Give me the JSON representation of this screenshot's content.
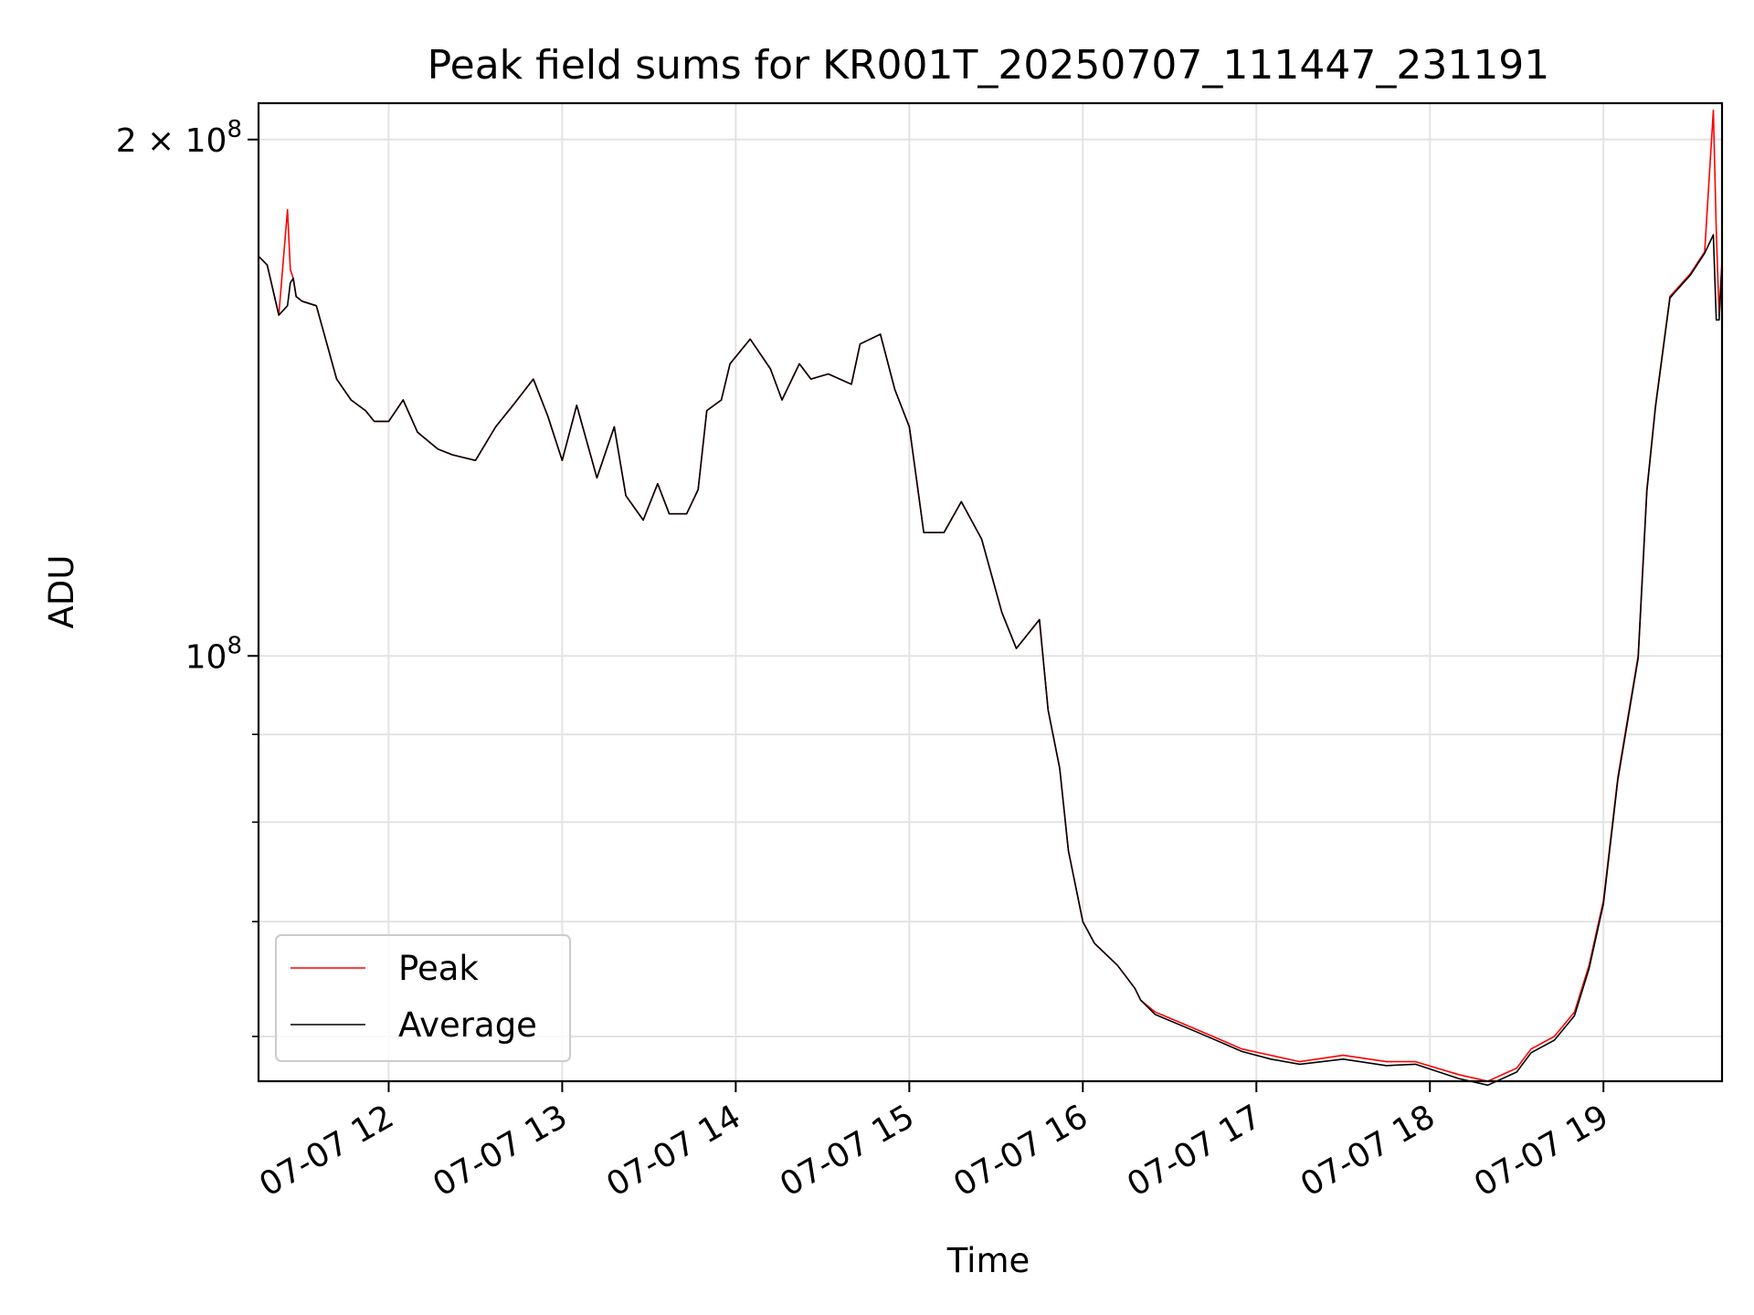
{
  "chart_data": {
    "type": "line",
    "title": "Peak field sums for KR001T_20250707_111447_231191",
    "xlabel": "Time",
    "ylabel": "ADU",
    "yscale": "log",
    "grid": true,
    "legend_position": "lower-left",
    "xlim": [
      "07-07 11:15",
      "07-07 19:41"
    ],
    "ylim": [
      56500000,
      210000000
    ],
    "x_ticks": [
      "07-07 12",
      "07-07 13",
      "07-07 14",
      "07-07 15",
      "07-07 16",
      "07-07 17",
      "07-07 18",
      "07-07 19"
    ],
    "x_tick_times": [
      "07-07 12:00",
      "07-07 13:00",
      "07-07 14:00",
      "07-07 15:00",
      "07-07 16:00",
      "07-07 17:00",
      "07-07 18:00",
      "07-07 19:00"
    ],
    "y_major_ticks": [
      {
        "value": 100000000,
        "mantissa": "",
        "exponent": "8"
      },
      {
        "value": 200000000,
        "mantissa": "2",
        "exponent": "8"
      }
    ],
    "y_minor_ticks": [
      60000000,
      70000000,
      80000000,
      90000000
    ],
    "series": [
      {
        "name": "Peak",
        "color": "#ff0000",
        "x": [
          "07-07 11:15",
          "07-07 11:18",
          "07-07 11:22",
          "07-07 11:25",
          "07-07 11:26",
          "07-07 11:27",
          "07-07 11:28",
          "07-07 11:30",
          "07-07 11:35",
          "07-07 11:42",
          "07-07 11:47",
          "07-07 11:52",
          "07-07 11:55",
          "07-07 12:00",
          "07-07 12:05",
          "07-07 12:10",
          "07-07 12:17",
          "07-07 12:22",
          "07-07 12:30",
          "07-07 12:37",
          "07-07 12:43",
          "07-07 12:50",
          "07-07 12:55",
          "07-07 13:00",
          "07-07 13:05",
          "07-07 13:12",
          "07-07 13:18",
          "07-07 13:22",
          "07-07 13:28",
          "07-07 13:33",
          "07-07 13:37",
          "07-07 13:43",
          "07-07 13:47",
          "07-07 13:50",
          "07-07 13:55",
          "07-07 13:58",
          "07-07 14:05",
          "07-07 14:12",
          "07-07 14:16",
          "07-07 14:22",
          "07-07 14:26",
          "07-07 14:32",
          "07-07 14:40",
          "07-07 14:43",
          "07-07 14:50",
          "07-07 14:55",
          "07-07 15:00",
          "07-07 15:05",
          "07-07 15:12",
          "07-07 15:18",
          "07-07 15:25",
          "07-07 15:32",
          "07-07 15:37",
          "07-07 15:45",
          "07-07 15:48",
          "07-07 15:52",
          "07-07 15:55",
          "07-07 16:00",
          "07-07 16:04",
          "07-07 16:08",
          "07-07 16:12",
          "07-07 16:15",
          "07-07 16:18",
          "07-07 16:20",
          "07-07 16:25",
          "07-07 16:35",
          "07-07 16:45",
          "07-07 16:55",
          "07-07 17:05",
          "07-07 17:15",
          "07-07 17:30",
          "07-07 17:45",
          "07-07 17:55",
          "07-07 18:10",
          "07-07 18:20",
          "07-07 18:30",
          "07-07 18:35",
          "07-07 18:43",
          "07-07 18:50",
          "07-07 18:55",
          "07-07 19:00",
          "07-07 19:05",
          "07-07 19:12",
          "07-07 19:15",
          "07-07 19:18",
          "07-07 19:23",
          "07-07 19:30",
          "07-07 19:35",
          "07-07 19:38",
          "07-07 19:39",
          "07-07 19:40",
          "07-07 19:41"
        ],
        "values": [
          171000000,
          169000000,
          158000000,
          182000000,
          168000000,
          166000000,
          162000000,
          161000000,
          160000000,
          145000000,
          141000000,
          139000000,
          137000000,
          137000000,
          141000000,
          135000000,
          132000000,
          131000000,
          130000000,
          136000000,
          140000000,
          145000000,
          138000000,
          130000000,
          140000000,
          127000000,
          136000000,
          124000000,
          120000000,
          126000000,
          121000000,
          121000000,
          125000000,
          139000000,
          141000000,
          148000000,
          153000000,
          147000000,
          141000000,
          148000000,
          145000000,
          146000000,
          144000000,
          152000000,
          154000000,
          143000000,
          136000000,
          118000000,
          118000000,
          123000000,
          117000000,
          106000000,
          101000000,
          105000000,
          93000000,
          86000000,
          77000000,
          70000000,
          68000000,
          67000000,
          66000000,
          65000000,
          64000000,
          63000000,
          62000000,
          61000000,
          60000000,
          59000000,
          58500000,
          58000000,
          58500000,
          58000000,
          58000000,
          57000000,
          56500000,
          57500000,
          59000000,
          60000000,
          62000000,
          66000000,
          72000000,
          85000000,
          100000000,
          125000000,
          140000000,
          162000000,
          167000000,
          172000000,
          208000000,
          177000000,
          158000000,
          170000000
        ]
      },
      {
        "name": "Average",
        "color": "#000000",
        "x": [
          "07-07 11:15",
          "07-07 11:18",
          "07-07 11:22",
          "07-07 11:25",
          "07-07 11:26",
          "07-07 11:27",
          "07-07 11:28",
          "07-07 11:30",
          "07-07 11:35",
          "07-07 11:42",
          "07-07 11:47",
          "07-07 11:52",
          "07-07 11:55",
          "07-07 12:00",
          "07-07 12:05",
          "07-07 12:10",
          "07-07 12:17",
          "07-07 12:22",
          "07-07 12:30",
          "07-07 12:37",
          "07-07 12:43",
          "07-07 12:50",
          "07-07 12:55",
          "07-07 13:00",
          "07-07 13:05",
          "07-07 13:12",
          "07-07 13:18",
          "07-07 13:22",
          "07-07 13:28",
          "07-07 13:33",
          "07-07 13:37",
          "07-07 13:43",
          "07-07 13:47",
          "07-07 13:50",
          "07-07 13:55",
          "07-07 13:58",
          "07-07 14:05",
          "07-07 14:12",
          "07-07 14:16",
          "07-07 14:22",
          "07-07 14:26",
          "07-07 14:32",
          "07-07 14:40",
          "07-07 14:43",
          "07-07 14:50",
          "07-07 14:55",
          "07-07 15:00",
          "07-07 15:05",
          "07-07 15:12",
          "07-07 15:18",
          "07-07 15:25",
          "07-07 15:32",
          "07-07 15:37",
          "07-07 15:45",
          "07-07 15:48",
          "07-07 15:52",
          "07-07 15:55",
          "07-07 16:00",
          "07-07 16:04",
          "07-07 16:08",
          "07-07 16:12",
          "07-07 16:15",
          "07-07 16:18",
          "07-07 16:20",
          "07-07 16:25",
          "07-07 16:35",
          "07-07 16:45",
          "07-07 16:55",
          "07-07 17:05",
          "07-07 17:15",
          "07-07 17:30",
          "07-07 17:45",
          "07-07 17:55",
          "07-07 18:10",
          "07-07 18:20",
          "07-07 18:30",
          "07-07 18:35",
          "07-07 18:43",
          "07-07 18:50",
          "07-07 18:55",
          "07-07 19:00",
          "07-07 19:05",
          "07-07 19:12",
          "07-07 19:15",
          "07-07 19:18",
          "07-07 19:23",
          "07-07 19:30",
          "07-07 19:35",
          "07-07 19:38",
          "07-07 19:39",
          "07-07 19:40",
          "07-07 19:41"
        ],
        "values": [
          171000000,
          169000000,
          158000000,
          160000000,
          165000000,
          166000000,
          162000000,
          161000000,
          160000000,
          145000000,
          141000000,
          139000000,
          137000000,
          137000000,
          141000000,
          135000000,
          132000000,
          131000000,
          130000000,
          136000000,
          140000000,
          145000000,
          138000000,
          130000000,
          140000000,
          127000000,
          136000000,
          124000000,
          120000000,
          126000000,
          121000000,
          121000000,
          125000000,
          139000000,
          141000000,
          148000000,
          153000000,
          147000000,
          141000000,
          148000000,
          145000000,
          146000000,
          144000000,
          152000000,
          154000000,
          143000000,
          136000000,
          118000000,
          118000000,
          123000000,
          117000000,
          106000000,
          101000000,
          105000000,
          93000000,
          86000000,
          77000000,
          70000000,
          68000000,
          67000000,
          66000000,
          65000000,
          64000000,
          63000000,
          61800000,
          60800000,
          59800000,
          58800000,
          58200000,
          57800000,
          58200000,
          57700000,
          57800000,
          56700000,
          56200000,
          57200000,
          58700000,
          59700000,
          61700000,
          65700000,
          71700000,
          84700000,
          99700000,
          124700000,
          139700000,
          161700000,
          166700000,
          171700000,
          176000000,
          157000000,
          157000000,
          169000000
        ]
      }
    ]
  }
}
